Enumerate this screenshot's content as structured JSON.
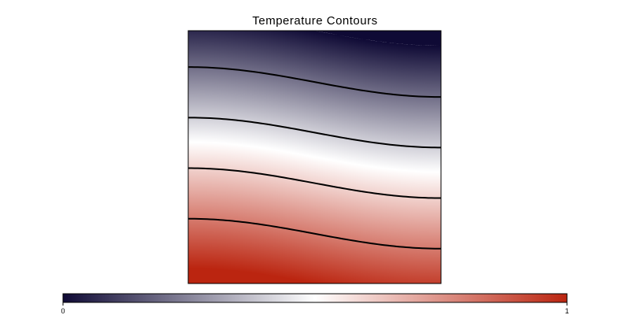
{
  "chart_data": {
    "type": "heatmap",
    "title": "Temperature Contours",
    "colorbar": {
      "ticks": [
        "0",
        "1"
      ],
      "min": 0,
      "max": 1,
      "colors": [
        "#0f0a35",
        "#ffffff",
        "#bb2510"
      ]
    },
    "contour_levels": [
      0.2,
      0.4,
      0.6,
      0.8
    ],
    "grid": false,
    "legend": "bottom"
  }
}
